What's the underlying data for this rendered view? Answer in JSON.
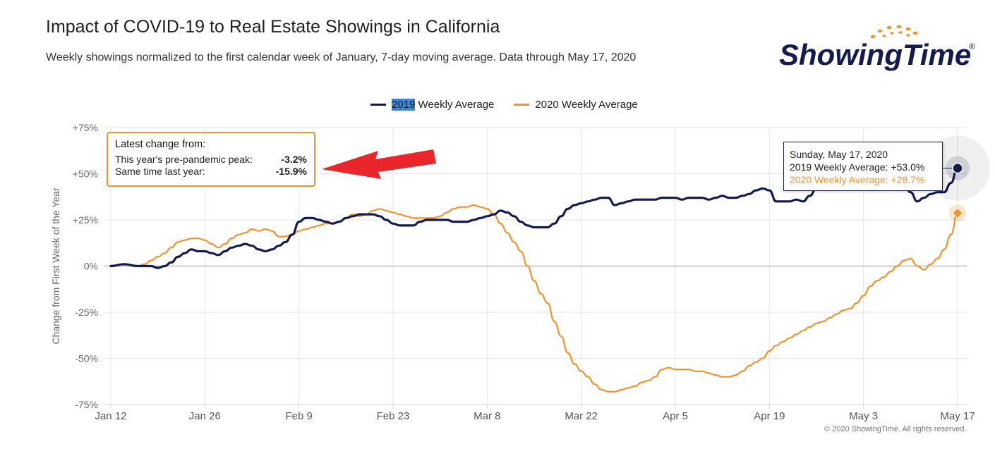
{
  "header": {
    "title": "Impact of COVID-19 to Real Estate Showings in California",
    "subtitle": "Weekly showings normalized to the first calendar week of January, 7-day moving average. Data through May 17, 2020"
  },
  "logo": {
    "text": "ShowingTime",
    "registered": "®"
  },
  "legend": {
    "s2019_year": "2019",
    "s2019_rest": " Weekly Average",
    "s2020_label": "2020 Weekly Average"
  },
  "latest_change": {
    "heading": "Latest change from:",
    "peak_label": "This year's pre-pandemic peak:",
    "peak_value": "-3.2%",
    "last_year_label": "Same time last year:",
    "last_year_value": "-15.9%"
  },
  "tooltip": {
    "date": "Sunday, May 17, 2020",
    "line_2019": "2019 Weekly Average: +53.0%",
    "line_2020": "2020 Weekly Average: +28.7%"
  },
  "copyright": "© 2020 ShowingTime. All rights reserved.",
  "colors": {
    "s2019": "#141b4d",
    "s2020": "#f0922e",
    "arrow": "#e8262b",
    "grid": "#e6e6e6"
  },
  "chart_data": {
    "type": "line",
    "ylabel": "Change from First Week of the Year",
    "ylim": [
      -75,
      75
    ],
    "yticks": [
      75,
      50,
      25,
      0,
      -25,
      -50,
      -75
    ],
    "ytick_labels": [
      "+75%",
      "+50%",
      "+25%",
      "0%",
      "-25%",
      "-50%",
      "-75%"
    ],
    "xlim": [
      0,
      126
    ],
    "xticks": [
      {
        "day": 0,
        "label": "Jan 12"
      },
      {
        "day": 14,
        "label": "Jan 26"
      },
      {
        "day": 28,
        "label": "Feb 9"
      },
      {
        "day": 42,
        "label": "Feb 23"
      },
      {
        "day": 56,
        "label": "Mar 8"
      },
      {
        "day": 70,
        "label": "Mar 22"
      },
      {
        "day": 84,
        "label": "Apr 5"
      },
      {
        "day": 98,
        "label": "Apr 19"
      },
      {
        "day": 112,
        "label": "May 3"
      },
      {
        "day": 126,
        "label": "May 17"
      }
    ],
    "legend_position": "top-center",
    "series": [
      {
        "name": "2019 Weekly Average",
        "points": [
          [
            0,
            0
          ],
          [
            2,
            1
          ],
          [
            4,
            0
          ],
          [
            6,
            0
          ],
          [
            7,
            -1
          ],
          [
            8,
            0
          ],
          [
            9,
            2
          ],
          [
            10,
            5
          ],
          [
            11,
            7
          ],
          [
            12,
            9
          ],
          [
            13,
            8
          ],
          [
            14,
            8
          ],
          [
            15,
            7
          ],
          [
            16,
            6
          ],
          [
            17,
            8
          ],
          [
            18,
            10
          ],
          [
            19,
            11
          ],
          [
            20,
            12
          ],
          [
            21,
            11
          ],
          [
            22,
            9
          ],
          [
            23,
            8
          ],
          [
            24,
            9
          ],
          [
            25,
            11
          ],
          [
            26,
            13
          ],
          [
            27,
            17
          ],
          [
            28,
            24
          ],
          [
            29,
            26
          ],
          [
            30,
            26
          ],
          [
            31,
            25
          ],
          [
            32,
            24
          ],
          [
            33,
            23
          ],
          [
            34,
            24
          ],
          [
            35,
            26
          ],
          [
            36,
            27
          ],
          [
            37,
            28
          ],
          [
            38,
            28
          ],
          [
            39,
            28
          ],
          [
            40,
            27
          ],
          [
            41,
            25
          ],
          [
            42,
            23
          ],
          [
            43,
            22
          ],
          [
            44,
            22
          ],
          [
            45,
            22
          ],
          [
            46,
            24
          ],
          [
            47,
            25
          ],
          [
            48,
            25
          ],
          [
            49,
            25
          ],
          [
            50,
            25
          ],
          [
            51,
            24
          ],
          [
            52,
            24
          ],
          [
            53,
            24
          ],
          [
            54,
            25
          ],
          [
            55,
            26
          ],
          [
            56,
            27
          ],
          [
            57,
            28
          ],
          [
            58,
            30
          ],
          [
            59,
            29
          ],
          [
            60,
            27
          ],
          [
            61,
            24
          ],
          [
            62,
            22
          ],
          [
            63,
            21
          ],
          [
            64,
            21
          ],
          [
            65,
            21
          ],
          [
            66,
            23
          ],
          [
            67,
            27
          ],
          [
            68,
            31
          ],
          [
            69,
            33
          ],
          [
            70,
            34
          ],
          [
            71,
            35
          ],
          [
            72,
            36
          ],
          [
            73,
            37
          ],
          [
            74,
            37
          ],
          [
            75,
            33
          ],
          [
            76,
            34
          ],
          [
            77,
            35
          ],
          [
            78,
            36
          ],
          [
            79,
            36
          ],
          [
            80,
            36
          ],
          [
            81,
            36
          ],
          [
            82,
            37
          ],
          [
            83,
            37
          ],
          [
            84,
            37
          ],
          [
            85,
            36
          ],
          [
            86,
            37
          ],
          [
            87,
            37
          ],
          [
            88,
            37
          ],
          [
            89,
            36
          ],
          [
            90,
            37
          ],
          [
            91,
            38
          ],
          [
            92,
            37
          ],
          [
            93,
            37
          ],
          [
            94,
            38
          ],
          [
            95,
            39
          ],
          [
            96,
            41
          ],
          [
            97,
            42
          ],
          [
            98,
            41
          ],
          [
            99,
            35
          ],
          [
            100,
            35
          ],
          [
            101,
            35
          ],
          [
            102,
            36
          ],
          [
            103,
            35
          ],
          [
            104,
            38
          ],
          [
            105,
            42
          ],
          [
            106,
            44
          ],
          [
            107,
            46
          ],
          [
            108,
            47
          ],
          [
            110,
            48
          ],
          [
            112,
            48
          ],
          [
            114,
            47
          ],
          [
            116,
            46
          ],
          [
            118,
            44
          ],
          [
            119,
            40
          ],
          [
            120,
            35
          ],
          [
            121,
            37
          ],
          [
            122,
            39
          ],
          [
            123,
            40
          ],
          [
            124,
            40
          ],
          [
            125,
            45
          ],
          [
            126,
            53
          ]
        ]
      },
      {
        "name": "2020 Weekly Average",
        "points": [
          [
            0,
            0
          ],
          [
            2,
            1
          ],
          [
            4,
            0
          ],
          [
            5,
            1
          ],
          [
            6,
            3
          ],
          [
            7,
            5
          ],
          [
            8,
            7
          ],
          [
            9,
            10
          ],
          [
            10,
            13
          ],
          [
            11,
            14
          ],
          [
            12,
            15
          ],
          [
            13,
            15
          ],
          [
            14,
            14
          ],
          [
            15,
            12
          ],
          [
            16,
            10
          ],
          [
            17,
            12
          ],
          [
            18,
            15
          ],
          [
            19,
            17
          ],
          [
            20,
            18
          ],
          [
            21,
            20
          ],
          [
            22,
            19
          ],
          [
            23,
            20
          ],
          [
            24,
            19
          ],
          [
            25,
            16
          ],
          [
            26,
            16
          ],
          [
            27,
            17
          ],
          [
            28,
            19
          ],
          [
            29,
            20
          ],
          [
            30,
            21
          ],
          [
            31,
            22
          ],
          [
            32,
            23
          ],
          [
            33,
            23
          ],
          [
            34,
            24
          ],
          [
            35,
            26
          ],
          [
            36,
            28
          ],
          [
            37,
            27
          ],
          [
            38,
            28
          ],
          [
            39,
            30
          ],
          [
            40,
            31
          ],
          [
            41,
            30
          ],
          [
            42,
            29
          ],
          [
            43,
            28
          ],
          [
            44,
            27
          ],
          [
            45,
            26
          ],
          [
            46,
            26
          ],
          [
            47,
            26
          ],
          [
            48,
            26
          ],
          [
            49,
            27
          ],
          [
            50,
            29
          ],
          [
            51,
            31
          ],
          [
            52,
            32
          ],
          [
            53,
            32
          ],
          [
            54,
            33
          ],
          [
            55,
            32
          ],
          [
            56,
            31
          ],
          [
            57,
            28
          ],
          [
            58,
            23
          ],
          [
            59,
            18
          ],
          [
            60,
            13
          ],
          [
            61,
            8
          ],
          [
            62,
            0
          ],
          [
            63,
            -8
          ],
          [
            64,
            -15
          ],
          [
            65,
            -20
          ],
          [
            66,
            -30
          ],
          [
            67,
            -38
          ],
          [
            68,
            -47
          ],
          [
            69,
            -53
          ],
          [
            70,
            -57
          ],
          [
            71,
            -60
          ],
          [
            72,
            -64
          ],
          [
            73,
            -67
          ],
          [
            74,
            -68
          ],
          [
            75,
            -68
          ],
          [
            76,
            -67
          ],
          [
            77,
            -66
          ],
          [
            78,
            -65
          ],
          [
            79,
            -63
          ],
          [
            80,
            -62
          ],
          [
            81,
            -60
          ],
          [
            82,
            -56
          ],
          [
            83,
            -55
          ],
          [
            84,
            -56
          ],
          [
            85,
            -56
          ],
          [
            86,
            -56
          ],
          [
            87,
            -57
          ],
          [
            88,
            -57
          ],
          [
            89,
            -58
          ],
          [
            90,
            -59
          ],
          [
            91,
            -60
          ],
          [
            92,
            -60
          ],
          [
            93,
            -59
          ],
          [
            94,
            -57
          ],
          [
            95,
            -54
          ],
          [
            96,
            -52
          ],
          [
            97,
            -50
          ],
          [
            98,
            -46
          ],
          [
            99,
            -43
          ],
          [
            100,
            -41
          ],
          [
            101,
            -39
          ],
          [
            102,
            -37
          ],
          [
            103,
            -35
          ],
          [
            104,
            -33
          ],
          [
            105,
            -31
          ],
          [
            106,
            -30
          ],
          [
            107,
            -28
          ],
          [
            108,
            -26
          ],
          [
            109,
            -24
          ],
          [
            110,
            -23
          ],
          [
            111,
            -20
          ],
          [
            112,
            -16
          ],
          [
            113,
            -11
          ],
          [
            114,
            -8
          ],
          [
            115,
            -6
          ],
          [
            116,
            -3
          ],
          [
            117,
            0
          ],
          [
            118,
            3
          ],
          [
            119,
            4
          ],
          [
            120,
            0
          ],
          [
            121,
            -2
          ],
          [
            122,
            1
          ],
          [
            123,
            4
          ],
          [
            124,
            9
          ],
          [
            125,
            17
          ],
          [
            126,
            28.7
          ]
        ]
      }
    ],
    "annotation_arrow": "points to Latest change box"
  }
}
